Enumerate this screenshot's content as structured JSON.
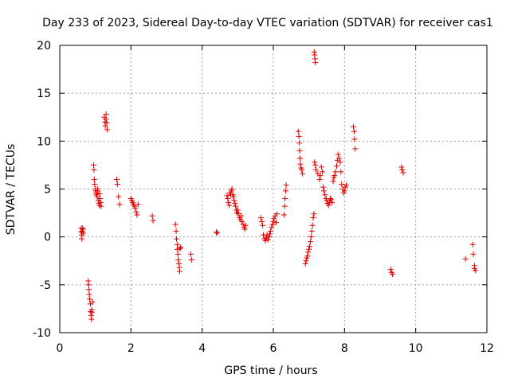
{
  "chart_data": {
    "type": "scatter",
    "title": "Day 233 of 2023, Sidereal Day-to-day VTEC variation (SDTVAR) for receiver cas1",
    "xlabel": "GPS time / hours",
    "ylabel": "SDTVAR / TECUs",
    "xlim": [
      0,
      12
    ],
    "ylim": [
      -10,
      20
    ],
    "xticks": [
      0,
      2,
      4,
      6,
      8,
      10,
      12
    ],
    "yticks": [
      -10,
      -5,
      0,
      5,
      10,
      15,
      20
    ],
    "xtick_labels": [
      "0",
      "2",
      "4",
      "6",
      "8",
      "10",
      "12"
    ],
    "ytick_labels": [
      "-10",
      "-5",
      "0",
      "5",
      "10",
      "15",
      "20"
    ],
    "grid": true,
    "marker": "plus",
    "color": "#e00000",
    "series": [
      {
        "name": "cas1",
        "x": [
          0.6,
          0.6,
          0.62,
          0.62,
          0.63,
          0.64,
          0.65,
          0.66,
          0.8,
          0.81,
          0.82,
          0.83,
          0.84,
          0.86,
          0.87,
          0.88,
          0.89,
          0.9,
          0.9,
          0.92,
          0.95,
          0.96,
          0.97,
          0.98,
          1.0,
          1.01,
          1.02,
          1.03,
          1.05,
          1.06,
          1.07,
          1.08,
          1.1,
          1.11,
          1.12,
          1.13,
          1.15,
          1.16,
          1.25,
          1.27,
          1.28,
          1.3,
          1.3,
          1.32,
          1.33,
          1.6,
          1.62,
          1.65,
          1.68,
          2.0,
          2.03,
          2.05,
          2.07,
          2.1,
          2.12,
          2.15,
          2.17,
          2.2,
          2.6,
          2.62,
          3.25,
          3.27,
          3.28,
          3.3,
          3.3,
          3.32,
          3.33,
          3.35,
          3.36,
          3.37,
          3.38,
          3.4,
          3.68,
          3.7,
          4.4,
          4.42,
          4.7,
          4.72,
          4.74,
          4.76,
          4.78,
          4.8,
          4.82,
          4.84,
          4.86,
          4.88,
          4.9,
          4.92,
          4.94,
          4.96,
          4.98,
          5.0,
          5.02,
          5.05,
          5.08,
          5.1,
          5.12,
          5.15,
          5.18,
          5.2,
          5.22,
          5.65,
          5.68,
          5.7,
          5.72,
          5.75,
          5.78,
          5.8,
          5.82,
          5.85,
          5.88,
          5.9,
          5.92,
          5.95,
          5.98,
          6.0,
          6.02,
          6.05,
          6.08,
          6.1,
          6.3,
          6.32,
          6.33,
          6.35,
          6.36,
          6.7,
          6.72,
          6.73,
          6.74,
          6.75,
          6.76,
          6.78,
          6.8,
          6.82,
          6.9,
          6.92,
          6.94,
          6.96,
          6.98,
          7.0,
          7.02,
          7.04,
          7.06,
          7.08,
          7.1,
          7.15,
          7.16,
          7.17,
          7.18,
          7.12,
          7.14,
          7.16,
          7.18,
          7.2,
          7.25,
          7.3,
          7.32,
          7.35,
          7.38,
          7.4,
          7.42,
          7.45,
          7.48,
          7.5,
          7.52,
          7.55,
          7.58,
          7.6,
          7.62,
          7.65,
          7.68,
          7.7,
          7.72,
          7.75,
          7.78,
          7.8,
          7.82,
          7.85,
          7.88,
          7.9,
          7.92,
          7.95,
          7.98,
          8.0,
          8.02,
          8.05,
          8.25,
          8.27,
          8.28,
          8.3,
          9.3,
          9.32,
          9.35,
          9.6,
          9.62,
          9.65,
          11.4,
          11.6,
          11.62,
          11.65,
          11.65,
          11.68
        ],
        "y": [
          0.9,
          0.5,
          0.2,
          -0.2,
          0.6,
          0.9,
          0.8,
          0.4,
          -4.6,
          -5.0,
          -5.5,
          -6.0,
          -6.5,
          -7.0,
          -7.8,
          -8.2,
          -8.6,
          -7.6,
          -7.9,
          -6.8,
          7.5,
          7.0,
          6.0,
          5.5,
          5.0,
          4.8,
          4.6,
          4.4,
          4.2,
          5.0,
          4.8,
          3.8,
          3.5,
          3.3,
          4.5,
          4.0,
          3.6,
          3.2,
          12.5,
          12.0,
          11.6,
          12.8,
          12.3,
          11.9,
          11.2,
          6.0,
          5.5,
          4.2,
          3.4,
          4.0,
          3.8,
          3.6,
          3.4,
          3.2,
          3.0,
          2.6,
          2.3,
          3.4,
          2.2,
          1.7,
          1.3,
          0.6,
          -0.2,
          -0.8,
          -1.3,
          -1.8,
          -2.4,
          -2.8,
          -3.2,
          -3.6,
          -1.2,
          -1.1,
          -1.8,
          -2.4,
          0.5,
          0.4,
          4.3,
          4.0,
          3.6,
          3.3,
          4.6,
          4.4,
          4.8,
          5.0,
          4.4,
          4.2,
          3.8,
          3.5,
          3.2,
          2.8,
          2.5,
          2.8,
          2.4,
          2.0,
          1.8,
          2.2,
          1.6,
          1.3,
          1.0,
          0.8,
          1.2,
          2.0,
          1.6,
          1.2,
          0.2,
          -0.2,
          -0.4,
          -0.1,
          0.2,
          -0.3,
          0.0,
          0.3,
          0.6,
          1.0,
          1.3,
          1.6,
          1.9,
          2.2,
          1.5,
          2.4,
          2.3,
          3.2,
          4.0,
          4.8,
          5.4,
          11.0,
          10.5,
          9.8,
          9.0,
          8.2,
          7.6,
          7.2,
          7.0,
          6.6,
          -2.8,
          -2.5,
          -2.2,
          -2.0,
          -1.6,
          -1.3,
          -1.0,
          -0.5,
          0.0,
          0.6,
          1.2,
          19.3,
          19.0,
          18.6,
          18.2,
          2.0,
          2.4,
          7.8,
          7.5,
          7.0,
          6.6,
          6.0,
          6.4,
          7.3,
          6.8,
          5.2,
          4.8,
          4.4,
          4.0,
          3.8,
          3.5,
          3.3,
          3.6,
          4.0,
          3.9,
          3.6,
          5.8,
          6.2,
          6.4,
          6.8,
          7.4,
          8.0,
          8.6,
          8.2,
          7.8,
          6.8,
          5.5,
          5.0,
          4.6,
          4.8,
          5.2,
          5.4,
          11.5,
          11.0,
          10.2,
          9.2,
          -3.4,
          -3.7,
          -3.9,
          7.3,
          7.0,
          6.7,
          -2.3,
          -0.8,
          -1.8,
          -3.0,
          -3.3,
          -3.5
        ]
      }
    ]
  }
}
